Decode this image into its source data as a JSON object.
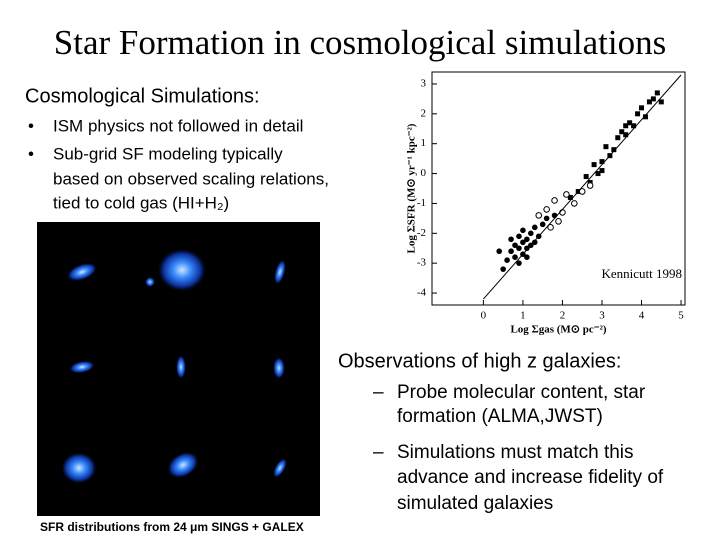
{
  "title": "Star Formation in cosmological simulations",
  "left": {
    "heading": "Cosmological Simulations:",
    "bullets": [
      [
        "ISM physics not followed in detail"
      ],
      [
        "Sub-grid SF modeling typically",
        "based on observed scaling relations,",
        "tied to cold gas (HI+H₂)"
      ]
    ]
  },
  "image": {
    "caption": "SFR distributions from 24 μm SINGS + GALEX"
  },
  "right": {
    "heading": "Observations of high z galaxies:",
    "items": [
      [
        "Probe molecular content, star",
        "formation (ALMA,JWST)"
      ],
      [
        "Simulations must match this",
        "advance and increase fidelity of",
        "simulated galaxies"
      ]
    ]
  },
  "chart_data": {
    "type": "scatter",
    "xlabel": "Log Σgas (M⊙ pc⁻²)",
    "ylabel": "Log ΣSFR (M⊙ yr⁻¹ kpc⁻²)",
    "annotation": "Kennicutt 1998",
    "xlim": [
      -1.3,
      5.1
    ],
    "ylim": [
      -4.4,
      3.4
    ],
    "xticks": [
      0,
      1,
      2,
      3,
      4,
      5
    ],
    "yticks": [
      3,
      2,
      1,
      0,
      -1,
      -2,
      -3,
      -4
    ],
    "series": [
      {
        "marker": "square",
        "color": "#000000",
        "x": [
          2.6,
          2.8,
          3.0,
          3.1,
          3.3,
          3.4,
          3.5,
          3.6,
          3.7,
          3.8,
          3.9,
          4.0,
          4.1,
          4.2,
          4.3,
          4.4,
          2.4,
          2.2,
          3.2,
          3.0,
          2.7,
          4.5,
          3.6,
          2.9
        ],
        "values": [
          -0.1,
          0.3,
          0.4,
          0.9,
          0.8,
          1.2,
          1.4,
          1.3,
          1.7,
          1.6,
          2.0,
          2.2,
          1.9,
          2.4,
          2.5,
          2.7,
          -0.6,
          -0.8,
          0.6,
          0.1,
          -0.3,
          2.4,
          1.6,
          0.0
        ]
      },
      {
        "marker": "circle",
        "color": "#000000",
        "x": [
          0.6,
          0.7,
          0.8,
          0.8,
          0.9,
          0.9,
          1.0,
          1.0,
          1.0,
          1.1,
          1.1,
          1.2,
          1.2,
          1.3,
          1.3,
          1.4,
          1.5,
          0.5,
          0.7,
          1.6,
          0.9,
          1.1,
          1.8,
          0.4
        ],
        "values": [
          -2.9,
          -2.6,
          -2.4,
          -2.8,
          -2.1,
          -2.5,
          -2.3,
          -2.7,
          -1.9,
          -2.2,
          -2.5,
          -2.0,
          -2.4,
          -1.8,
          -2.3,
          -2.1,
          -1.7,
          -3.2,
          -2.2,
          -1.5,
          -3.0,
          -2.8,
          -1.4,
          -2.6
        ]
      },
      {
        "marker": "open-circle",
        "color": "#000000",
        "x": [
          1.4,
          1.6,
          1.8,
          2.0,
          2.1,
          2.3,
          2.5,
          2.7,
          1.9,
          1.7
        ],
        "values": [
          -1.4,
          -1.2,
          -0.9,
          -1.3,
          -0.7,
          -1.0,
          -0.6,
          -0.4,
          -1.6,
          -1.8
        ]
      },
      {
        "marker": "line",
        "color": "#000000",
        "x": [
          0.0,
          5.0
        ],
        "values": [
          -4.2,
          3.3
        ]
      }
    ]
  }
}
